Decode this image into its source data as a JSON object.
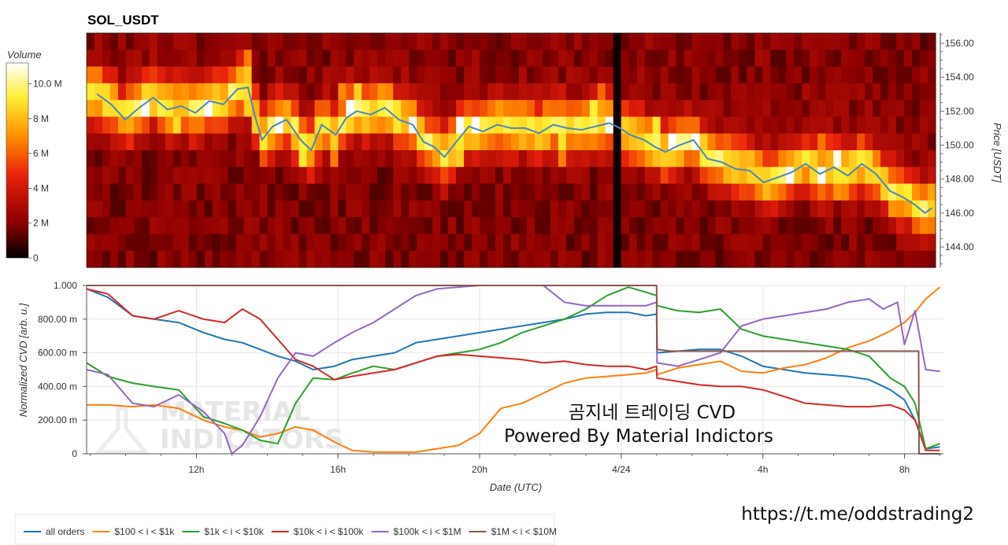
{
  "chart_data": [
    {
      "type": "heatmap",
      "title": "SOL_USDT",
      "ylabel": "Price [USDT]",
      "ylim": [
        142.8,
        156.6
      ],
      "y_ticks": [
        "144.00",
        "146.00",
        "148.00",
        "150.00",
        "152.00",
        "154.00",
        "156.00"
      ],
      "colorbar": {
        "title": "Volume",
        "ticks": [
          "0",
          "2 M",
          "4 M",
          "6 M",
          "8 M",
          "10.0 M"
        ],
        "range": [
          0,
          11200000
        ],
        "colors": [
          "#000000",
          "#8b0000",
          "#e8200c",
          "#ff8c00",
          "#ffee30",
          "#ffffff"
        ]
      },
      "gap_hour": 24,
      "price_series": {
        "hours": [
          9.2,
          9.6,
          10.0,
          10.4,
          10.8,
          11.2,
          11.6,
          12.0,
          12.4,
          12.8,
          13.2,
          13.5,
          13.7,
          13.9,
          14.2,
          14.6,
          15.0,
          15.3,
          15.6,
          16.0,
          16.3,
          16.6,
          17.0,
          17.4,
          17.8,
          18.2,
          18.5,
          18.8,
          19.1,
          19.4,
          19.8,
          20.2,
          20.6,
          21.0,
          21.4,
          21.8,
          22.2,
          22.6,
          23.0,
          23.4,
          23.8,
          24.1,
          24.4,
          24.8,
          25.1,
          25.4,
          25.8,
          26.2,
          26.6,
          27.0,
          27.4,
          27.8,
          28.2,
          28.6,
          29.0,
          29.4,
          29.8,
          30.2,
          30.6,
          31.0,
          31.4,
          31.8,
          32.2,
          32.5,
          32.8,
          33.0
        ],
        "values": [
          153.0,
          152.4,
          151.5,
          152.2,
          152.8,
          152.1,
          152.3,
          151.9,
          152.6,
          152.4,
          153.3,
          153.4,
          151.7,
          150.3,
          151.1,
          151.5,
          150.3,
          149.7,
          151.2,
          150.6,
          151.6,
          152.0,
          151.8,
          152.2,
          151.5,
          151.2,
          150.2,
          149.9,
          149.3,
          150.1,
          151.1,
          150.8,
          151.2,
          151.0,
          151.0,
          150.7,
          151.2,
          151.0,
          150.9,
          151.1,
          151.3,
          151.0,
          150.6,
          150.3,
          149.9,
          149.6,
          150.0,
          150.3,
          149.2,
          149.0,
          148.6,
          148.5,
          147.8,
          148.1,
          148.4,
          148.9,
          148.3,
          148.7,
          148.2,
          148.9,
          148.3,
          147.3,
          146.9,
          146.5,
          146.0,
          146.3
        ]
      }
    },
    {
      "type": "line",
      "xlabel": "Date (UTC)",
      "ylabel": "Normalized CVD [arb. u.]",
      "ylim": [
        0,
        1.0
      ],
      "xlim": [
        8.9,
        33.1
      ],
      "y_ticks": [
        "0",
        "200.00 m",
        "400.00 m",
        "600.00 m",
        "800.00 m",
        "1.000"
      ],
      "x_ticks": [
        {
          "hour": 12,
          "label": "12h"
        },
        {
          "hour": 16,
          "label": "16h"
        },
        {
          "hour": 20,
          "label": "20h"
        },
        {
          "hour": 24,
          "label": "4/24"
        },
        {
          "hour": 28,
          "label": "4h"
        },
        {
          "hour": 32,
          "label": "8h"
        }
      ],
      "series": [
        {
          "name": "all orders",
          "color": "#1f77b4",
          "x": [
            8.9,
            9.5,
            10.2,
            10.8,
            11.5,
            12.2,
            12.8,
            13.3,
            13.8,
            14.3,
            14.8,
            15.3,
            15.9,
            16.4,
            17.0,
            17.6,
            18.2,
            18.8,
            19.4,
            20.0,
            20.6,
            21.2,
            21.8,
            22.4,
            23.0,
            23.6,
            24.2,
            24.7,
            25.0,
            25.01,
            25.6,
            26.2,
            26.8,
            27.4,
            28.0,
            28.6,
            29.2,
            29.8,
            30.4,
            31.0,
            31.6,
            32.0,
            32.3,
            32.6,
            33.0
          ],
          "y": [
            0.98,
            0.93,
            0.82,
            0.8,
            0.78,
            0.72,
            0.68,
            0.66,
            0.62,
            0.58,
            0.55,
            0.5,
            0.52,
            0.56,
            0.58,
            0.6,
            0.66,
            0.68,
            0.7,
            0.72,
            0.74,
            0.76,
            0.78,
            0.8,
            0.83,
            0.84,
            0.84,
            0.82,
            0.83,
            0.6,
            0.61,
            0.62,
            0.62,
            0.58,
            0.52,
            0.5,
            0.48,
            0.47,
            0.46,
            0.44,
            0.38,
            0.32,
            0.2,
            0.03,
            0.04
          ]
        },
        {
          "name": "$100 < i < $1k",
          "color": "#ff7f0e",
          "x": [
            8.9,
            9.5,
            10.2,
            10.8,
            11.5,
            12.2,
            12.8,
            13.3,
            13.8,
            14.3,
            14.8,
            15.3,
            15.9,
            16.4,
            17.0,
            17.6,
            18.2,
            18.8,
            19.4,
            20.0,
            20.6,
            21.2,
            21.8,
            22.4,
            23.0,
            23.6,
            24.2,
            24.7,
            25.0,
            25.01,
            25.6,
            26.2,
            26.8,
            27.4,
            28.0,
            28.6,
            29.2,
            29.8,
            30.4,
            31.0,
            31.6,
            32.0,
            32.3,
            32.6,
            33.0
          ],
          "y": [
            0.29,
            0.29,
            0.28,
            0.29,
            0.27,
            0.2,
            0.16,
            0.14,
            0.1,
            0.12,
            0.16,
            0.14,
            0.07,
            0.02,
            0.01,
            0.01,
            0.01,
            0.03,
            0.05,
            0.12,
            0.27,
            0.3,
            0.36,
            0.42,
            0.45,
            0.46,
            0.47,
            0.48,
            0.5,
            0.47,
            0.51,
            0.53,
            0.55,
            0.49,
            0.48,
            0.51,
            0.53,
            0.57,
            0.63,
            0.67,
            0.73,
            0.78,
            0.84,
            0.92,
            0.99
          ]
        },
        {
          "name": "$1k < i < $10k",
          "color": "#2ca02c",
          "x": [
            8.9,
            9.5,
            10.2,
            10.8,
            11.5,
            12.2,
            12.8,
            13.3,
            13.8,
            14.3,
            14.8,
            15.3,
            15.9,
            16.4,
            17.0,
            17.6,
            18.2,
            18.8,
            19.4,
            20.0,
            20.6,
            21.2,
            21.8,
            22.4,
            23.0,
            23.6,
            24.2,
            24.7,
            25.0,
            25.01,
            25.6,
            26.2,
            26.8,
            27.4,
            28.0,
            28.6,
            29.2,
            29.8,
            30.4,
            31.0,
            31.6,
            32.0,
            32.3,
            32.6,
            33.0
          ],
          "y": [
            0.54,
            0.46,
            0.42,
            0.4,
            0.38,
            0.22,
            0.18,
            0.14,
            0.08,
            0.06,
            0.3,
            0.45,
            0.44,
            0.48,
            0.52,
            0.5,
            0.54,
            0.58,
            0.6,
            0.62,
            0.66,
            0.72,
            0.76,
            0.8,
            0.86,
            0.94,
            0.99,
            0.96,
            0.94,
            0.88,
            0.85,
            0.84,
            0.86,
            0.74,
            0.7,
            0.68,
            0.66,
            0.64,
            0.62,
            0.58,
            0.45,
            0.4,
            0.3,
            0.03,
            0.06
          ]
        },
        {
          "name": "$10k < i < $100k",
          "color": "#d62728",
          "x": [
            8.9,
            9.5,
            10.2,
            10.8,
            11.5,
            12.2,
            12.8,
            13.3,
            13.8,
            14.3,
            14.8,
            15.3,
            15.9,
            16.4,
            17.0,
            17.6,
            18.2,
            18.8,
            19.4,
            20.0,
            20.6,
            21.2,
            21.8,
            22.4,
            23.0,
            23.6,
            24.2,
            24.7,
            25.0,
            25.01,
            25.6,
            26.2,
            26.8,
            27.4,
            28.0,
            28.6,
            29.2,
            29.8,
            30.4,
            31.0,
            31.6,
            32.0,
            32.3,
            32.6,
            33.0
          ],
          "y": [
            0.98,
            0.95,
            0.82,
            0.8,
            0.85,
            0.8,
            0.78,
            0.86,
            0.8,
            0.68,
            0.56,
            0.52,
            0.44,
            0.46,
            0.48,
            0.5,
            0.54,
            0.58,
            0.59,
            0.58,
            0.57,
            0.56,
            0.54,
            0.55,
            0.53,
            0.52,
            0.52,
            0.5,
            0.52,
            0.45,
            0.43,
            0.41,
            0.4,
            0.4,
            0.38,
            0.34,
            0.3,
            0.29,
            0.28,
            0.28,
            0.29,
            0.26,
            0.2,
            0.02,
            0.02
          ]
        },
        {
          "name": "$100k < i < $1M",
          "color": "#9467bd",
          "x": [
            8.9,
            9.5,
            10.2,
            10.8,
            11.5,
            12.2,
            12.8,
            13.0,
            13.3,
            13.8,
            14.3,
            14.8,
            15.3,
            15.9,
            16.4,
            17.0,
            17.6,
            18.2,
            18.8,
            19.4,
            20.0,
            20.6,
            21.2,
            21.8,
            22.4,
            23.0,
            23.6,
            24.2,
            24.7,
            25.0,
            25.01,
            25.6,
            26.2,
            26.8,
            27.4,
            28.0,
            28.6,
            29.2,
            29.8,
            30.4,
            31.0,
            31.4,
            31.8,
            32.0,
            32.3,
            32.6,
            33.0
          ],
          "y": [
            0.5,
            0.47,
            0.3,
            0.28,
            0.35,
            0.25,
            0.12,
            0.0,
            0.05,
            0.22,
            0.45,
            0.6,
            0.58,
            0.66,
            0.72,
            0.78,
            0.86,
            0.94,
            0.98,
            0.99,
            1.0,
            1.0,
            1.0,
            1.0,
            0.9,
            0.88,
            0.88,
            0.88,
            0.88,
            0.9,
            0.54,
            0.52,
            0.56,
            0.6,
            0.76,
            0.8,
            0.82,
            0.84,
            0.86,
            0.9,
            0.92,
            0.86,
            0.9,
            0.65,
            0.85,
            0.5,
            0.49
          ]
        },
        {
          "name": "$1M < i < $10M",
          "color": "#8c564b",
          "x": [
            8.9,
            25.0,
            25.01,
            25.4,
            26.4,
            26.5,
            32.4,
            32.41,
            32.6,
            33.0
          ],
          "y": [
            1.0,
            1.0,
            0.62,
            0.61,
            0.61,
            0.61,
            0.61,
            0.0,
            0.0,
            0.0
          ]
        }
      ],
      "legend": "bottom-left"
    }
  ],
  "overlay_text": {
    "line1": "곰지네 트레이딩 CVD",
    "line2": "Powered By Material Indictors"
  },
  "watermark": {
    "line1": "MATERIAL",
    "line2": "INDICATORS"
  },
  "url": "https://t.me/oddstrading2"
}
